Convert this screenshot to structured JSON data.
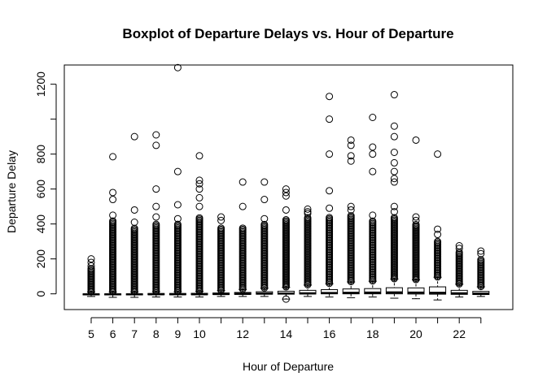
{
  "chart_data": {
    "type": "boxplot",
    "title": "Boxplot of Departure Delays vs. Hour of Departure",
    "xlabel": "Hour of Departure",
    "ylabel": "Departure Delay",
    "ylim": [
      -90,
      1310
    ],
    "y_ticks": [
      0,
      200,
      400,
      600,
      800,
      1000,
      1200
    ],
    "y_tick_labels": [
      "0",
      "200",
      "400",
      "600",
      "800",
      "",
      "1200"
    ],
    "categories": [
      5,
      6,
      7,
      8,
      9,
      10,
      11,
      12,
      13,
      14,
      15,
      16,
      17,
      18,
      19,
      20,
      21,
      22,
      23
    ],
    "x_tick_labels": [
      "5",
      "6",
      "7",
      "8",
      "9",
      "10",
      "",
      "12",
      "",
      "14",
      "",
      "16",
      "",
      "18",
      "",
      "20",
      "",
      "22",
      ""
    ],
    "grid": false,
    "boxes": [
      {
        "hour": 5,
        "min": -15,
        "q1": -6,
        "median": -3,
        "q3": 0,
        "max": 10,
        "outlier_band": [
          12,
          150
        ],
        "outliers": [
          160,
          180,
          200
        ]
      },
      {
        "hour": 6,
        "min": -20,
        "q1": -6,
        "median": -3,
        "q3": 0,
        "max": 10,
        "outlier_band": [
          12,
          420
        ],
        "outliers": [
          450,
          540,
          580,
          785
        ]
      },
      {
        "hour": 7,
        "min": -20,
        "q1": -6,
        "median": -3,
        "q3": 0,
        "max": 10,
        "outlier_band": [
          12,
          380
        ],
        "outliers": [
          410,
          480,
          900
        ]
      },
      {
        "hour": 8,
        "min": -18,
        "q1": -5,
        "median": -2,
        "q3": 2,
        "max": 12,
        "outlier_band": [
          14,
          400
        ],
        "outliers": [
          440,
          500,
          600,
          850,
          910
        ]
      },
      {
        "hour": 9,
        "min": -18,
        "q1": -5,
        "median": -2,
        "q3": 2,
        "max": 12,
        "outlier_band": [
          14,
          400
        ],
        "outliers": [
          430,
          510,
          700,
          1295
        ]
      },
      {
        "hour": 10,
        "min": -18,
        "q1": -5,
        "median": -2,
        "q3": 3,
        "max": 14,
        "outlier_band": [
          16,
          440
        ],
        "outliers": [
          500,
          550,
          600,
          630,
          650,
          790
        ]
      },
      {
        "hour": 11,
        "min": -15,
        "q1": -4,
        "median": -1,
        "q3": 5,
        "max": 18,
        "outlier_band": [
          20,
          380
        ],
        "outliers": [
          420,
          440
        ]
      },
      {
        "hour": 12,
        "min": -15,
        "q1": -3,
        "median": 0,
        "q3": 8,
        "max": 25,
        "outlier_band": [
          27,
          380
        ],
        "outliers": [
          500,
          640
        ]
      },
      {
        "hour": 13,
        "min": -15,
        "q1": -2,
        "median": 1,
        "q3": 12,
        "max": 32,
        "outlier_band": [
          34,
          400
        ],
        "outliers": [
          430,
          540,
          640
        ]
      },
      {
        "hour": 14,
        "min": -30,
        "q1": -2,
        "median": 2,
        "q3": 15,
        "max": 38,
        "outlier_band": [
          40,
          430
        ],
        "outliers": [
          480,
          560,
          580,
          600,
          -30
        ]
      },
      {
        "hour": 15,
        "min": -15,
        "q1": -1,
        "median": 3,
        "q3": 20,
        "max": 50,
        "outlier_band": [
          52,
          440
        ],
        "outliers": [
          460,
          470,
          485
        ]
      },
      {
        "hour": 16,
        "min": -18,
        "q1": 0,
        "median": 5,
        "q3": 24,
        "max": 58,
        "outlier_band": [
          60,
          440
        ],
        "outliers": [
          490,
          590,
          800,
          1000,
          1130
        ]
      },
      {
        "hour": 17,
        "min": -22,
        "q1": 0,
        "median": 6,
        "q3": 28,
        "max": 68,
        "outlier_band": [
          70,
          450
        ],
        "outliers": [
          480,
          500,
          760,
          790,
          850,
          880
        ]
      },
      {
        "hour": 18,
        "min": -18,
        "q1": 0,
        "median": 7,
        "q3": 30,
        "max": 72,
        "outlier_band": [
          74,
          420
        ],
        "outliers": [
          450,
          700,
          800,
          840,
          1010
        ]
      },
      {
        "hour": 19,
        "min": -25,
        "q1": 0,
        "median": 8,
        "q3": 35,
        "max": 85,
        "outlier_band": [
          87,
          440
        ],
        "outliers": [
          470,
          500,
          640,
          660,
          700,
          750,
          810,
          900,
          960,
          1140
        ]
      },
      {
        "hour": 20,
        "min": -28,
        "q1": -1,
        "median": 7,
        "q3": 34,
        "max": 80,
        "outlier_band": [
          82,
          400
        ],
        "outliers": [
          420,
          440,
          880
        ]
      },
      {
        "hour": 21,
        "min": -35,
        "q1": -2,
        "median": 6,
        "q3": 40,
        "max": 95,
        "outlier_band": [
          97,
          300
        ],
        "outliers": [
          340,
          370,
          800
        ]
      },
      {
        "hour": 22,
        "min": -18,
        "q1": -3,
        "median": 3,
        "q3": 20,
        "max": 55,
        "outlier_band": [
          57,
          240
        ],
        "outliers": [
          260,
          275
        ]
      },
      {
        "hour": 23,
        "min": -15,
        "q1": -4,
        "median": 1,
        "q3": 14,
        "max": 40,
        "outlier_band": [
          42,
          200
        ],
        "outliers": [
          230,
          245
        ]
      }
    ]
  }
}
